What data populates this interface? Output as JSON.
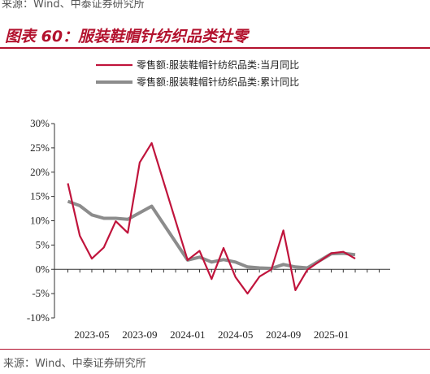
{
  "source_top": "来源：Wind、中泰证券研究所",
  "figure_title": "图表 60：服装鞋帽针纺织品类社零",
  "source_bottom": "来源：Wind、中泰证券研究所",
  "colors": {
    "accent": "#b3122e",
    "series_monthly": "#c0143c",
    "series_cumulative": "#8c8c8c"
  },
  "chart_data": {
    "type": "line",
    "title": "",
    "xlabel": "",
    "ylabel": "",
    "ylim": [
      -10,
      30
    ],
    "yticks": [
      -10,
      -5,
      0,
      5,
      10,
      15,
      20,
      25,
      30
    ],
    "ytick_labels": [
      "-10%",
      "-5%",
      "0%",
      "5%",
      "10%",
      "15%",
      "20%",
      "25%",
      "30%"
    ],
    "x": [
      "2023-03",
      "2023-04",
      "2023-05",
      "2023-06",
      "2023-07",
      "2023-08",
      "2023-09",
      "2023-10",
      "2023-11",
      "2023-12",
      "2024-01",
      "2024-02",
      "2024-03",
      "2024-04",
      "2024-05",
      "2024-06",
      "2024-07",
      "2024-08",
      "2024-09",
      "2024-10",
      "2024-11",
      "2024-12",
      "2025-01",
      "2025-02",
      "2025-03",
      "2025-04",
      "2025-05"
    ],
    "xtick_labels": [
      "2023-05",
      "2023-09",
      "2024-01",
      "2024-05",
      "2024-09",
      "2025-01"
    ],
    "grid": false,
    "legend_position": "top",
    "series": [
      {
        "name": "零售额:服装鞋帽针纺织品类:当月同比",
        "color": "#c0143c",
        "values": [
          17.7,
          6.9,
          2.2,
          4.5,
          9.9,
          7.5,
          22.0,
          26.0,
          null,
          null,
          1.9,
          3.8,
          -2.0,
          4.4,
          -1.6,
          -5.0,
          -1.5,
          0,
          8.0,
          -4.3,
          -0.1,
          null,
          3.3,
          3.6,
          2.2,
          null,
          null
        ]
      },
      {
        "name": "零售额:服装鞋帽针纺织品类:累计同比",
        "color": "#8c8c8c",
        "values": [
          14.0,
          13.1,
          11.2,
          10.5,
          10.5,
          10.3,
          null,
          13.0,
          null,
          null,
          1.9,
          2.5,
          1.5,
          2.0,
          1.5,
          0.5,
          0.3,
          0.2,
          1.0,
          0.5,
          0.3,
          null,
          3.2,
          3.3,
          3.0,
          null,
          null
        ]
      }
    ]
  }
}
